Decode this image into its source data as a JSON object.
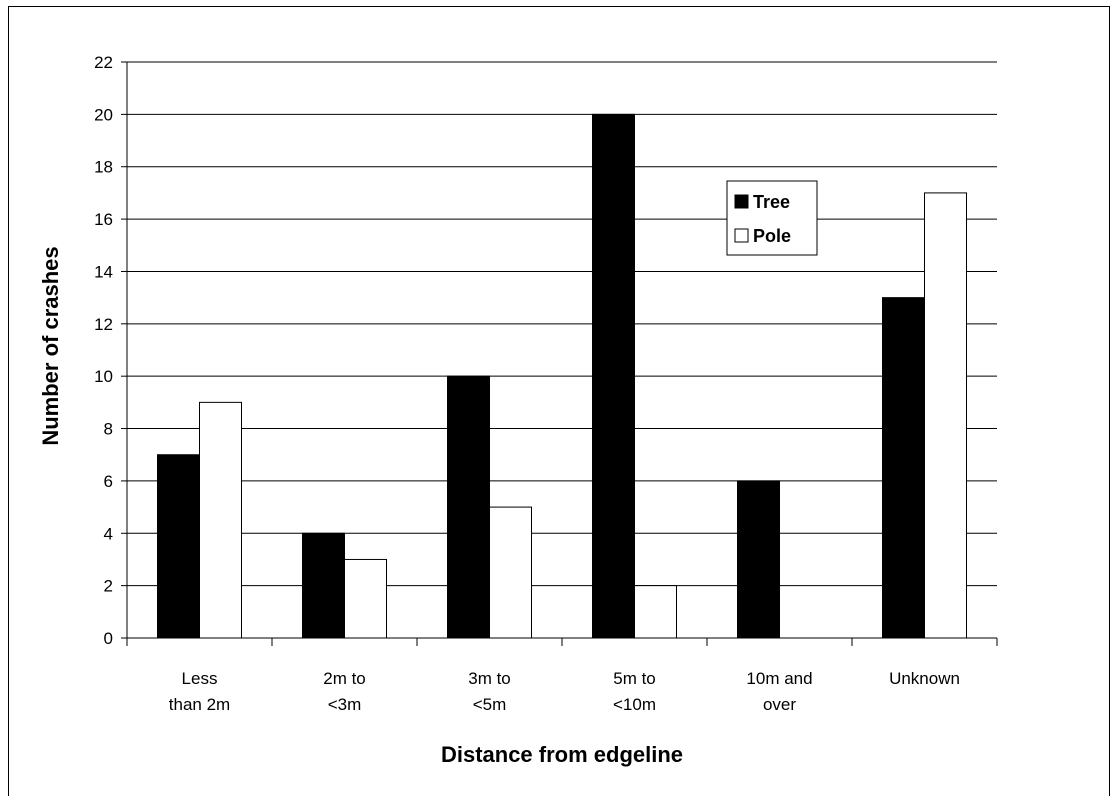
{
  "chart_data": {
    "type": "bar",
    "title": "",
    "xlabel": "Distance from edgeline",
    "ylabel": "Number of crashes",
    "ylim": [
      0,
      22
    ],
    "yticks": [
      0,
      2,
      4,
      6,
      8,
      10,
      12,
      14,
      16,
      18,
      20,
      22
    ],
    "categories": [
      [
        "Less",
        "than 2m"
      ],
      [
        "2m to",
        "<3m"
      ],
      [
        "3m to",
        "<5m"
      ],
      [
        "5m to",
        "<10m"
      ],
      [
        "10m and",
        "over"
      ],
      [
        "Unknown"
      ]
    ],
    "series": [
      {
        "name": "Tree",
        "color": "#000000",
        "values": [
          7,
          4,
          10,
          20,
          6,
          13
        ]
      },
      {
        "name": "Pole",
        "color": "#ffffff",
        "values": [
          9,
          3,
          5,
          2,
          0,
          17
        ]
      }
    ],
    "grid": true,
    "legend_position": "upper-right-inside"
  }
}
